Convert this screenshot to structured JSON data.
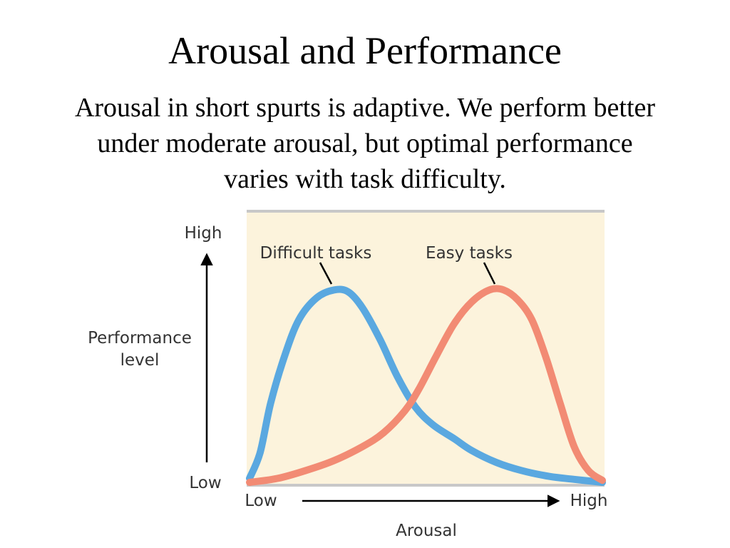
{
  "slide": {
    "title": "Arousal and Performance",
    "subtitle_lines": [
      "Arousal in short spurts is adaptive. We perform better",
      "under moderate arousal, but optimal performance",
      "varies with task difficulty."
    ]
  },
  "chart_data": {
    "type": "line",
    "xlabel": "Arousal",
    "ylabel_lines": [
      "Performance",
      "level"
    ],
    "x_ticks": {
      "low": "Low",
      "high": "High"
    },
    "y_ticks": {
      "low": "Low",
      "high": "High"
    },
    "x_range": [
      0,
      1
    ],
    "y_range": [
      0,
      1
    ],
    "grid": false,
    "background_color": "#fcf3dc",
    "frame_color": "#c8c8c8",
    "series": [
      {
        "name": "Difficult tasks",
        "color": "#5aa8e0",
        "x": [
          0.0,
          0.03,
          0.06,
          0.1,
          0.14,
          0.19,
          0.24,
          0.28,
          0.32,
          0.37,
          0.42,
          0.47,
          0.52,
          0.58,
          0.63,
          0.7,
          0.77,
          0.85,
          0.92,
          1.0
        ],
        "y": [
          0.02,
          0.15,
          0.4,
          0.64,
          0.82,
          0.93,
          0.97,
          0.96,
          0.88,
          0.72,
          0.53,
          0.38,
          0.29,
          0.22,
          0.16,
          0.1,
          0.06,
          0.03,
          0.015,
          0.0
        ]
      },
      {
        "name": "Easy tasks",
        "color": "#f28b74",
        "x": [
          0.0,
          0.08,
          0.16,
          0.24,
          0.32,
          0.38,
          0.44,
          0.48,
          0.53,
          0.58,
          0.63,
          0.68,
          0.72,
          0.76,
          0.8,
          0.84,
          0.88,
          0.92,
          0.96,
          1.0
        ],
        "y": [
          0.0,
          0.02,
          0.06,
          0.11,
          0.18,
          0.25,
          0.36,
          0.47,
          0.64,
          0.8,
          0.91,
          0.97,
          0.97,
          0.92,
          0.82,
          0.63,
          0.4,
          0.18,
          0.06,
          0.01
        ]
      }
    ]
  }
}
